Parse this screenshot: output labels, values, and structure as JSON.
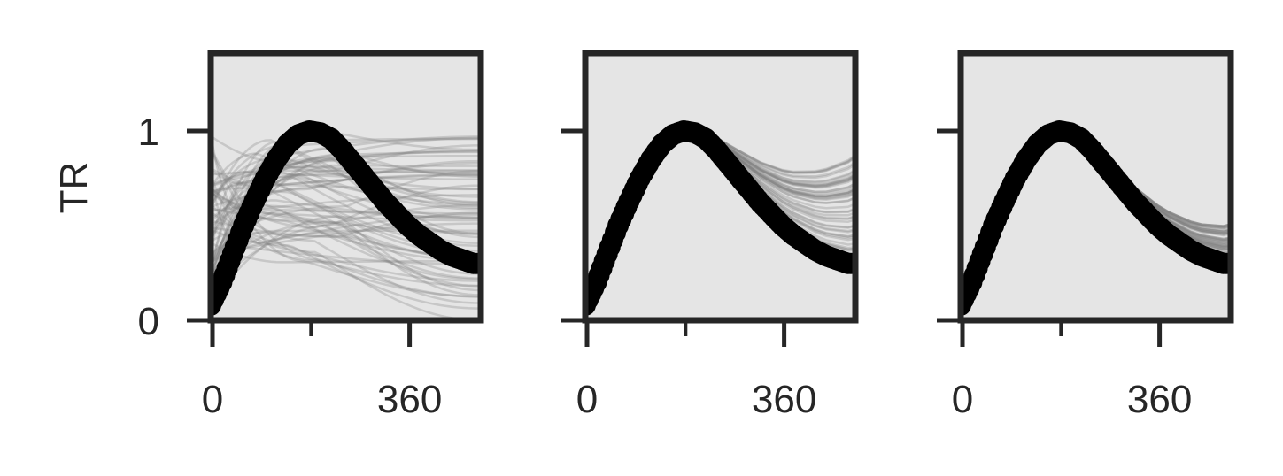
{
  "chart_data": {
    "type": "line",
    "ylabel": "TR",
    "xlim": [
      0,
      490
    ],
    "ylim": [
      0,
      1.0
    ],
    "xticks_major": [
      0,
      360
    ],
    "xticks_major_labels": [
      "0",
      "360"
    ],
    "xticks_minor": [
      180,
      540
    ],
    "yticks": [
      0,
      1
    ],
    "ytick_labels": [
      "0",
      "1"
    ],
    "grid": false,
    "colors": {
      "background": "#e5e5e5",
      "frame": "#262626",
      "observed": "#000000",
      "simulated": "#808080"
    },
    "reference_series": {
      "x": [
        0,
        20,
        40,
        60,
        80,
        100,
        120,
        140,
        160,
        180,
        200,
        220,
        240,
        260,
        280,
        300,
        320,
        340,
        360,
        380,
        400,
        420,
        440,
        460,
        480
      ],
      "y": [
        0.08,
        0.2,
        0.35,
        0.5,
        0.63,
        0.75,
        0.85,
        0.93,
        0.98,
        1.0,
        0.99,
        0.96,
        0.9,
        0.83,
        0.76,
        0.69,
        0.62,
        0.56,
        0.5,
        0.45,
        0.41,
        0.37,
        0.34,
        0.32,
        0.3
      ]
    },
    "panels": [
      {
        "name": "panel-1",
        "simulated_spread": "wide"
      },
      {
        "name": "panel-2",
        "simulated_spread": "medium"
      },
      {
        "name": "panel-3",
        "simulated_spread": "narrow"
      }
    ]
  }
}
